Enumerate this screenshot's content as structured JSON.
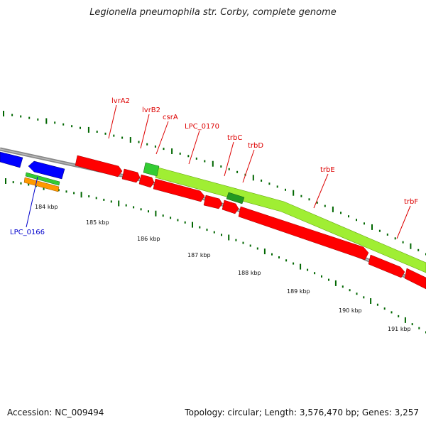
{
  "title": "Legionella pneumophila str. Corby, complete genome",
  "footer": {
    "accession": "Accession: NC_009494",
    "summary": "Topology: circular; Length: 3,576,470 bp; Genes: 3,257"
  },
  "colors": {
    "backbone": "#888888",
    "forward_gene": "#ff0000",
    "reverse_gene": "#0000ff",
    "green_feature": "#33cc33",
    "lime_feature": "#a0ee33",
    "orange_feature": "#ff9900",
    "tick": "#006600",
    "red_label": "#dd0000",
    "blue_label": "#0000cc"
  },
  "scale_labels": [
    "184 kbp",
    "185 kbp",
    "186 kbp",
    "187 kbp",
    "188 kbp",
    "189 kbp",
    "190 kbp",
    "191 kbp"
  ],
  "gene_labels": [
    {
      "text": "lvrA2",
      "color": "red"
    },
    {
      "text": "lvrB2",
      "color": "red"
    },
    {
      "text": "csrA",
      "color": "red"
    },
    {
      "text": "LPC_0170",
      "color": "red"
    },
    {
      "text": "trbC",
      "color": "red"
    },
    {
      "text": "trbD",
      "color": "red"
    },
    {
      "text": "trbE",
      "color": "red"
    },
    {
      "text": "trbF",
      "color": "red"
    },
    {
      "text": "LPC_0166",
      "color": "blue"
    }
  ]
}
